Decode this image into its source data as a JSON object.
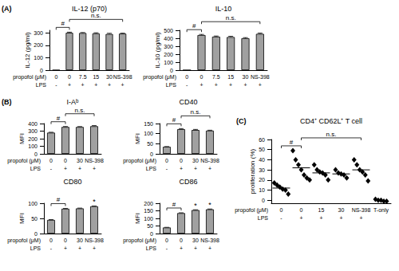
{
  "chart_data": [
    {
      "type": "bar",
      "panel": "(A)",
      "title": "IL-12 (p70)",
      "y_label": "IL-12 (pg/ml)",
      "row_labels": [
        "propofol (μM)",
        "LPS"
      ],
      "categories": [
        "0",
        "0",
        "7.5",
        "15",
        "30",
        "NS-398"
      ],
      "lps": [
        "-",
        "+",
        "+",
        "+",
        "+",
        "+"
      ],
      "values": [
        0,
        300,
        298,
        295,
        290,
        293
      ],
      "errors": [
        0,
        5,
        4,
        5,
        6,
        4
      ],
      "color": "#a0a0a0",
      "ylim": [
        0,
        320
      ],
      "yticks": [
        0,
        100,
        200,
        300
      ],
      "grid": false,
      "annotations": [
        {
          "text": "#",
          "from": 0,
          "to": 1
        },
        {
          "text": "n.s.",
          "from": 1,
          "to": 5
        }
      ]
    },
    {
      "type": "bar",
      "title": "IL-10",
      "y_label": "IL-10 (pg/ml)",
      "row_labels": [
        "propofol (μM)",
        "LPS"
      ],
      "categories": [
        "0",
        "0",
        "7.5",
        "15",
        "30",
        "NS-398"
      ],
      "lps": [
        "-",
        "+",
        "+",
        "+",
        "+",
        "+"
      ],
      "values": [
        0,
        440,
        420,
        415,
        400,
        455
      ],
      "errors": [
        0,
        8,
        8,
        10,
        8,
        10
      ],
      "color": "#a0a0a0",
      "ylim": [
        0,
        500
      ],
      "yticks": [
        0,
        100,
        200,
        300,
        400,
        500
      ],
      "grid": false,
      "annotations": [
        {
          "text": "#",
          "from": 0,
          "to": 1
        },
        {
          "text": "n.s.",
          "from": 1,
          "to": 5
        }
      ]
    },
    {
      "type": "bar",
      "panel": "(B)",
      "title": "I-Aᵇ",
      "y_label": "MFI",
      "row_labels": [
        "propofol (μM)",
        "LPS"
      ],
      "categories": [
        "0",
        "0",
        "30",
        "NS-398"
      ],
      "lps": [
        "-",
        "+",
        "+",
        "+"
      ],
      "values": [
        280,
        355,
        355,
        365
      ],
      "errors": [
        5,
        6,
        5,
        8
      ],
      "color": "#a0a0a0",
      "ylim": [
        0,
        400
      ],
      "yticks": [
        0,
        100,
        200,
        300,
        400
      ],
      "grid": false,
      "annotations": [
        {
          "text": "#",
          "from": 0,
          "to": 1
        },
        {
          "text": "n.s.",
          "from": 1,
          "to": 3
        }
      ]
    },
    {
      "type": "bar",
      "title": "CD40",
      "y_label": "MFI",
      "row_labels": [
        "propofol (μM)",
        "LPS"
      ],
      "categories": [
        "0",
        "0",
        "30",
        "NS-398"
      ],
      "lps": [
        "-",
        "+",
        "+",
        "+"
      ],
      "values": [
        35,
        122,
        118,
        115
      ],
      "errors": [
        1,
        3,
        3,
        2
      ],
      "color": "#a0a0a0",
      "ylim": [
        0,
        150
      ],
      "yticks": [
        0,
        50,
        100,
        150
      ],
      "grid": false,
      "annotations": [
        {
          "text": "#",
          "from": 0,
          "to": 1
        },
        {
          "text": "n.s.",
          "from": 1,
          "to": 3
        }
      ]
    },
    {
      "type": "bar",
      "title": "CD80",
      "y_label": "MFI",
      "row_labels": [
        "propofol (μM)",
        "LPS"
      ],
      "categories": [
        "0",
        "0",
        "30",
        "NS-398"
      ],
      "lps": [
        "-",
        "+",
        "+",
        "+"
      ],
      "values": [
        45,
        82,
        83,
        90
      ],
      "errors": [
        1,
        1,
        1,
        1
      ],
      "color": "#a0a0a0",
      "ylim": [
        0,
        100
      ],
      "yticks": [
        0,
        50,
        100
      ],
      "grid": false,
      "annotations": [
        {
          "text": "#",
          "from": 0,
          "to": 1
        },
        {
          "text": "*",
          "at": 3
        }
      ]
    },
    {
      "type": "bar",
      "title": "CD86",
      "y_label": "MFI",
      "row_labels": [
        "propofol (μM)",
        "LPS"
      ],
      "categories": [
        "0",
        "0",
        "30",
        "NS-398"
      ],
      "lps": [
        "-",
        "+",
        "+",
        "+"
      ],
      "values": [
        40,
        135,
        155,
        160
      ],
      "errors": [
        1,
        2,
        2,
        2
      ],
      "color": "#a0a0a0",
      "ylim": [
        0,
        200
      ],
      "yticks": [
        0,
        50,
        100,
        150,
        200
      ],
      "grid": false,
      "annotations": [
        {
          "text": "#",
          "from": 0,
          "to": 1
        },
        {
          "text": "*",
          "at": 2
        },
        {
          "text": "*",
          "at": 3
        }
      ]
    },
    {
      "type": "scatter",
      "panel": "(C)",
      "title": "CD4⁺ CD62L⁺ T cell",
      "y_label": "proliferation (%)",
      "row_labels": [
        "propofol (μM)",
        "LPS"
      ],
      "categories": [
        "0",
        "0",
        "15",
        "30",
        "NS-398",
        "T-only"
      ],
      "lps": [
        "-",
        "+",
        "+",
        "+",
        "+",
        null
      ],
      "points": [
        [
          17,
          15,
          13,
          11,
          10,
          6
        ],
        [
          49,
          40,
          35,
          30,
          25,
          22,
          20
        ],
        [
          35,
          30,
          28,
          27,
          25,
          20
        ],
        [
          30,
          27,
          26,
          25,
          22
        ],
        [
          40,
          35,
          30,
          28,
          25,
          19
        ],
        [
          1,
          0,
          0,
          -1,
          -1
        ]
      ],
      "means": [
        12,
        32,
        27,
        26,
        30,
        null
      ],
      "color": "#000000",
      "marker": "diamond",
      "ylim": [
        -3,
        60
      ],
      "yticks": [
        0,
        10,
        20,
        30,
        40,
        50,
        60
      ],
      "grid": false,
      "annotations": [
        {
          "text": "#",
          "from": 0,
          "to": 1
        },
        {
          "text": "n.s.",
          "from": 1,
          "to": 4
        }
      ]
    }
  ]
}
